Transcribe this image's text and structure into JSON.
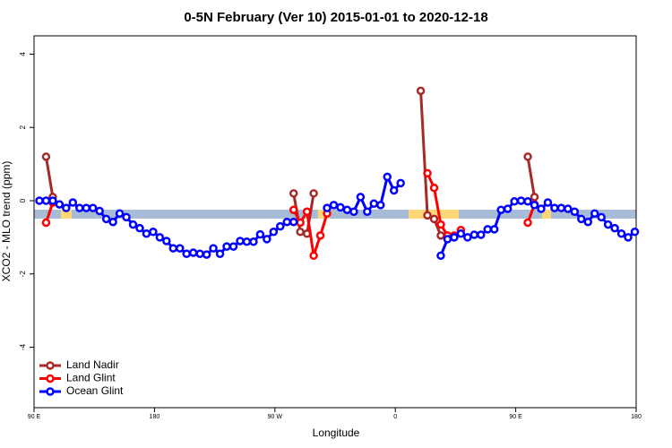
{
  "chart_data": {
    "type": "line",
    "title": "0-5N February (Ver 10)   2015-01-01 to 2020-12-18",
    "x_label": "Longitude",
    "y_label": "XCO2 - MLO trend (ppm)",
    "xlim": [
      90,
      540
    ],
    "ylim": [
      -5.65,
      4.5
    ],
    "xticks": [
      {
        "value": 90,
        "label": "90 E"
      },
      180,
      {
        "value": 270,
        "label": "90 W"
      },
      {
        "value": 360,
        "label": "0"
      },
      {
        "value": 450,
        "label": "90 E"
      },
      {
        "value": 540,
        "label": "180"
      }
    ],
    "yticks": [
      -4,
      -2,
      0,
      2,
      4
    ],
    "legend": "bottom left",
    "x": [
      94,
      99,
      104,
      109,
      114,
      119,
      124,
      129,
      134,
      139,
      144,
      149,
      154,
      159,
      164,
      169,
      174,
      179,
      184,
      189,
      194,
      199,
      204,
      209,
      214,
      219,
      224,
      229,
      234,
      239,
      244,
      249,
      254,
      259,
      264,
      269,
      274,
      279,
      284,
      289,
      294,
      299,
      304,
      309,
      314,
      319,
      324,
      329,
      334,
      339,
      344,
      349,
      354,
      359,
      364,
      369,
      374,
      379,
      384,
      389,
      394,
      399,
      404,
      409,
      414,
      419,
      424,
      429,
      434,
      439,
      444,
      449,
      454,
      459,
      464,
      469,
      474,
      479,
      484,
      489,
      494,
      499,
      504,
      509,
      514,
      519,
      524,
      529,
      534,
      539
    ],
    "series": [
      {
        "name": "Land Nadir",
        "color": "#a52a2a",
        "values": [
          null,
          1.2,
          0.1,
          null,
          null,
          null,
          null,
          null,
          null,
          null,
          null,
          null,
          null,
          null,
          null,
          null,
          null,
          null,
          null,
          null,
          null,
          null,
          null,
          null,
          null,
          null,
          null,
          null,
          null,
          null,
          null,
          null,
          null,
          null,
          null,
          null,
          null,
          null,
          0.2,
          -0.85,
          -0.9,
          0.2,
          null,
          null,
          null,
          null,
          null,
          null,
          null,
          null,
          null,
          null,
          null,
          null,
          null,
          null,
          null,
          3.0,
          -0.4,
          -0.5,
          -0.95,
          null,
          null,
          null,
          null,
          null,
          null,
          null,
          null,
          null,
          null,
          null,
          null,
          1.2,
          0.1,
          null,
          null,
          null,
          null,
          null,
          null,
          null,
          null,
          null,
          null,
          null,
          null,
          null,
          null,
          null
        ]
      },
      {
        "name": "Land Glint",
        "color": "#ff0000",
        "values": [
          null,
          -0.6,
          -0.05,
          null,
          null,
          null,
          null,
          null,
          null,
          null,
          null,
          null,
          null,
          null,
          null,
          null,
          null,
          null,
          null,
          null,
          null,
          null,
          null,
          null,
          null,
          null,
          null,
          null,
          null,
          null,
          null,
          null,
          null,
          null,
          null,
          null,
          null,
          null,
          -0.25,
          -0.6,
          -0.3,
          -1.5,
          -0.95,
          -0.35,
          null,
          null,
          null,
          null,
          null,
          null,
          null,
          null,
          null,
          null,
          null,
          null,
          null,
          null,
          0.75,
          0.35,
          -0.65,
          -0.95,
          -0.95,
          -0.8,
          null,
          null,
          null,
          null,
          null,
          null,
          null,
          null,
          null,
          -0.6,
          -0.1,
          null,
          null,
          null,
          null,
          null,
          null,
          null,
          null,
          null,
          null,
          null,
          null,
          null,
          null,
          null
        ]
      },
      {
        "name": "Ocean Glint",
        "color": "#0000ff",
        "values": [
          0,
          0,
          0,
          -0.1,
          -0.2,
          -0.05,
          -0.2,
          -0.2,
          -0.2,
          -0.28,
          -0.5,
          -0.58,
          -0.35,
          -0.45,
          -0.65,
          -0.75,
          -0.9,
          -0.85,
          -1.0,
          -1.1,
          -1.3,
          -1.3,
          -1.45,
          -1.42,
          -1.45,
          -1.47,
          -1.3,
          -1.45,
          -1.25,
          -1.25,
          -1.1,
          -1.12,
          -1.12,
          -0.92,
          -1.05,
          -0.85,
          -0.7,
          -0.58,
          -0.58,
          null,
          null,
          null,
          null,
          -0.2,
          -0.12,
          -0.18,
          -0.25,
          -0.3,
          0.1,
          -0.3,
          -0.08,
          -0.12,
          0.65,
          0.28,
          0.48,
          null,
          null,
          null,
          null,
          null,
          -1.5,
          -1.05,
          -1.0,
          -0.9,
          -1.0,
          -0.93,
          -0.93,
          -0.78,
          -0.78,
          -0.25,
          -0.22,
          -0.02,
          0,
          -0.02,
          -0.12,
          -0.22,
          -0.05,
          -0.2,
          -0.2,
          -0.22,
          -0.3,
          -0.5,
          -0.58,
          -0.35,
          -0.45,
          -0.65,
          -0.75,
          -0.9,
          -1.0,
          -0.85
        ]
      }
    ]
  }
}
